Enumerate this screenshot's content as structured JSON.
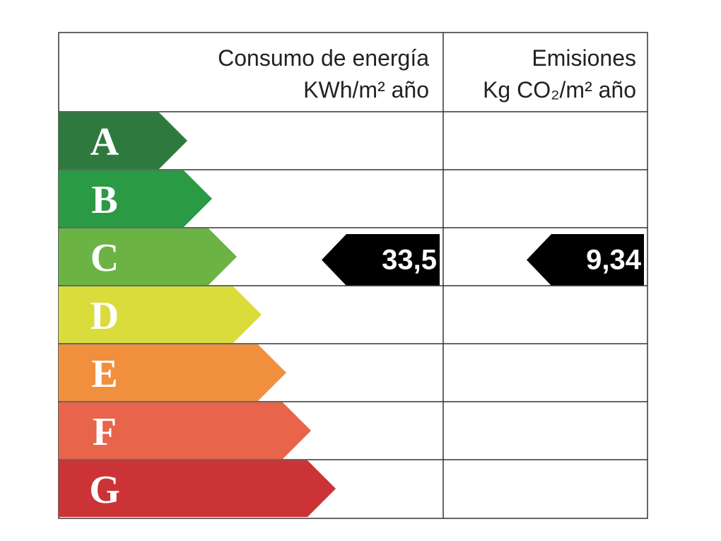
{
  "header": {
    "consumption": {
      "title": "Consumo de energía",
      "unit": "KWh/m² año"
    },
    "emissions": {
      "title": "Emisiones",
      "unit": "Kg CO₂/m² año"
    }
  },
  "ratings": [
    {
      "letter": "A",
      "color": "#2e7a3e"
    },
    {
      "letter": "B",
      "color": "#2a9a45"
    },
    {
      "letter": "C",
      "color": "#6ab344",
      "consumption": "33,5",
      "emissions": "9,34"
    },
    {
      "letter": "D",
      "color": "#d9dc3a"
    },
    {
      "letter": "E",
      "color": "#f0903f"
    },
    {
      "letter": "F",
      "color": "#e8644b"
    },
    {
      "letter": "G",
      "color": "#cc3336"
    }
  ]
}
